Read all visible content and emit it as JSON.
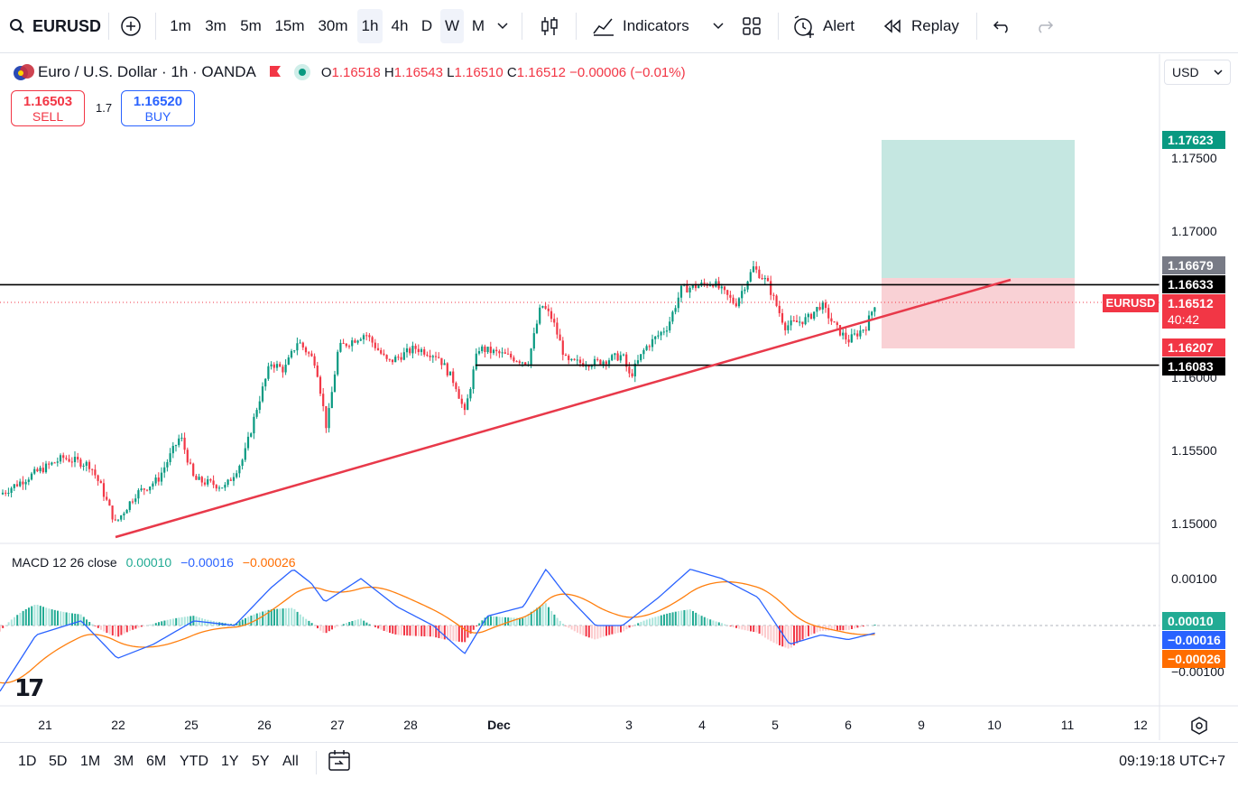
{
  "toolbar": {
    "symbol": "EURUSD",
    "intervals": [
      "1m",
      "3m",
      "5m",
      "15m",
      "30m",
      "1h",
      "4h",
      "D",
      "W",
      "M"
    ],
    "indicators_label": "Indicators",
    "alert_label": "Alert",
    "replay_label": "Replay"
  },
  "legend": {
    "title": "Euro / U.S. Dollar · 1h · OANDA",
    "open_key": "O",
    "open": "1.16518",
    "high_key": "H",
    "high": "1.16543",
    "low_key": "L",
    "low": "1.16510",
    "close_key": "C",
    "close": "1.16512",
    "change": "−0.00006 (−0.01%)"
  },
  "trade": {
    "sell_price": "1.16503",
    "sell_label": "SELL",
    "spread": "1.7",
    "buy_price": "1.16520",
    "buy_label": "BUY"
  },
  "currency_select": "USD",
  "price_axis": {
    "ticks": [
      "1.17500",
      "1.17000",
      "1.16000",
      "1.15500",
      "1.15000"
    ],
    "labels": {
      "target": "1.17623",
      "entry": "1.16679",
      "level_upper": "1.16633",
      "current": "1.16512",
      "countdown": "40:42",
      "stop": "1.16207",
      "level_lower": "1.16083",
      "symbol_tag": "EURUSD"
    }
  },
  "macd": {
    "legend_name": "MACD 12 26 close",
    "hist": "0.00010",
    "macd": "−0.00016",
    "signal": "−0.00026",
    "axis_ticks": [
      "0.00100",
      "−0.00100"
    ],
    "labels": {
      "hist": "0.00010",
      "macd": "−0.00016",
      "signal": "−0.00026"
    }
  },
  "time_axis": [
    "21",
    "22",
    "25",
    "26",
    "27",
    "28",
    "Dec",
    "3",
    "4",
    "5",
    "6",
    "9",
    "10",
    "11",
    "12"
  ],
  "ranges": [
    "1D",
    "5D",
    "1M",
    "3M",
    "6M",
    "YTD",
    "1Y",
    "5Y",
    "All"
  ],
  "clock": "09:19:18 UTC+7",
  "colors": {
    "up": "#089981",
    "down": "#f23645",
    "trend": "#e8394a",
    "macd": "#2962ff",
    "signal": "#ff7f0e"
  }
}
